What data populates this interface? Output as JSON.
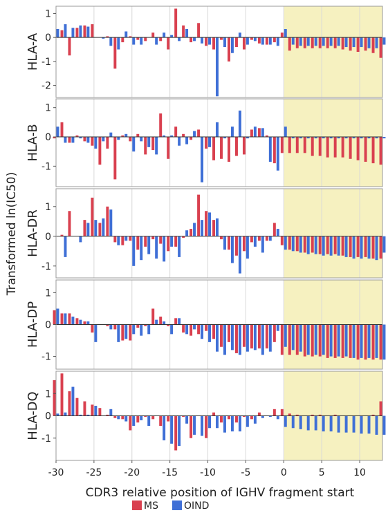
{
  "chart_data": {
    "type": "bar",
    "xlabel": "CDR3 relative position of IGHV fragment start",
    "ylabel": "Transformed ln(IC50)",
    "xlim": [
      -30,
      13
    ],
    "x_ticks": [
      -30,
      -25,
      -20,
      -15,
      -10,
      -5,
      0,
      5,
      10
    ],
    "highlight_range": [
      0,
      13
    ],
    "highlight_color": "#f6f1c0",
    "x": [
      -30,
      -29,
      -28,
      -27,
      -26,
      -25,
      -24,
      -23,
      -22,
      -21,
      -20,
      -19,
      -18,
      -17,
      -16,
      -15,
      -14,
      -13,
      -12,
      -11,
      -10,
      -9,
      -8,
      -7,
      -6,
      -5,
      -4,
      -3,
      -2,
      -1,
      0,
      1,
      2,
      3,
      4,
      5,
      6,
      7,
      8,
      9,
      10,
      11,
      12,
      13
    ],
    "legend": [
      {
        "name": "MS",
        "color": "#d9404f"
      },
      {
        "name": "OIND",
        "color": "#3f6fd6"
      }
    ],
    "panels": [
      {
        "label": "HLA-A",
        "ylim": [
          -2.5,
          1.3
        ],
        "y_ticks": [
          1,
          0,
          -1,
          -2
        ],
        "series": [
          {
            "name": "MS",
            "values": [
              0.0,
              0.3,
              -0.75,
              0.4,
              0.5,
              0.55,
              0.0,
              0.05,
              -1.3,
              -0.2,
              0.05,
              -0.1,
              -0.15,
              0.2,
              -0.15,
              -0.5,
              1.2,
              0.5,
              -0.2,
              0.6,
              -0.35,
              -0.5,
              -0.1,
              -1.0,
              -0.4,
              -0.5,
              -0.1,
              -0.25,
              -0.3,
              -0.2,
              0.2,
              -0.55,
              -0.45,
              -0.45,
              -0.45,
              -0.45,
              -0.45,
              -0.45,
              -0.5,
              -0.55,
              -0.6,
              -0.55,
              -0.65,
              -0.85
            ]
          },
          {
            "name": "OIND",
            "values": [
              0.35,
              0.55,
              0.4,
              0.5,
              0.45,
              0.0,
              -0.05,
              -0.35,
              -0.5,
              0.25,
              -0.3,
              -0.3,
              0.0,
              -0.3,
              0.2,
              0.1,
              -0.15,
              0.35,
              -0.15,
              -0.25,
              -0.3,
              -2.45,
              -0.4,
              -0.65,
              0.2,
              -0.3,
              -0.15,
              -0.3,
              -0.3,
              -0.35,
              0.35,
              -0.3,
              -0.35,
              -0.35,
              -0.35,
              -0.35,
              -0.35,
              -0.35,
              -0.4,
              -0.4,
              -0.4,
              -0.45,
              -0.45,
              -0.3
            ]
          }
        ]
      },
      {
        "label": "HLA-B",
        "ylim": [
          -1.7,
          1.3
        ],
        "y_ticks": [
          1,
          0,
          -1
        ],
        "series": [
          {
            "name": "MS",
            "values": [
              -0.05,
              0.5,
              -0.2,
              0.05,
              -0.15,
              -0.3,
              -0.95,
              -0.4,
              -1.45,
              0.05,
              -0.15,
              0.1,
              -0.6,
              -0.45,
              0.8,
              -0.75,
              0.35,
              0.1,
              -0.1,
              0.25,
              -0.4,
              -0.8,
              -0.75,
              -0.85,
              -0.65,
              -0.6,
              0.25,
              0.3,
              0.05,
              -0.9,
              -0.55,
              -0.55,
              -0.55,
              -0.55,
              -0.65,
              -0.65,
              -0.7,
              -0.7,
              -0.7,
              -0.75,
              -0.8,
              -0.85,
              -0.9,
              -0.95
            ]
          },
          {
            "name": "OIND",
            "values": [
              0.35,
              -0.2,
              -0.2,
              -0.05,
              -0.2,
              -0.4,
              -0.15,
              0.15,
              -0.1,
              0.1,
              -0.5,
              -0.15,
              -0.35,
              -0.6,
              0.05,
              0.05,
              -0.3,
              -0.25,
              0.2,
              -1.55,
              -0.35,
              0.5,
              -0.05,
              0.35,
              0.9,
              -0.05,
              0.35,
              0.3,
              -0.85,
              -1.15,
              0.35,
              -0.05,
              -0.05,
              -0.05,
              -0.05,
              -0.05,
              -0.05,
              -0.05,
              -0.05,
              -0.05,
              -0.05,
              -0.05,
              -0.05,
              -0.05
            ]
          }
        ]
      },
      {
        "label": "HLA-DR",
        "ylim": [
          -1.4,
          1.6
        ],
        "y_ticks": [
          1,
          0,
          -1
        ],
        "series": [
          {
            "name": "MS",
            "values": [
              0.0,
              0.05,
              0.85,
              0.0,
              0.55,
              1.3,
              0.45,
              1.0,
              -0.2,
              -0.3,
              -0.15,
              -0.45,
              -0.35,
              -0.1,
              -0.25,
              -0.5,
              -0.35,
              -0.05,
              0.25,
              1.4,
              0.85,
              0.55,
              -0.1,
              -0.45,
              -0.65,
              -0.5,
              -0.2,
              -0.15,
              -0.15,
              0.45,
              -0.3,
              -0.45,
              -0.5,
              -0.55,
              -0.55,
              -0.6,
              -0.6,
              -0.6,
              -0.65,
              -0.7,
              -0.7,
              -0.7,
              -0.75,
              -0.75
            ]
          },
          {
            "name": "OIND",
            "values": [
              0.0,
              -0.7,
              0.0,
              -0.2,
              0.45,
              0.55,
              0.6,
              0.9,
              -0.3,
              -0.15,
              -1.0,
              -0.8,
              -0.6,
              -0.75,
              -0.85,
              -0.35,
              -0.7,
              0.2,
              0.45,
              0.55,
              0.8,
              0.6,
              -0.45,
              -0.9,
              -1.25,
              -0.75,
              -0.35,
              -0.55,
              -0.15,
              0.25,
              -0.45,
              -0.5,
              -0.55,
              -0.6,
              -0.6,
              -0.65,
              -0.65,
              -0.65,
              -0.7,
              -0.75,
              -0.75,
              -0.75,
              -0.8,
              -0.55
            ]
          }
        ]
      },
      {
        "label": "HLA-DP",
        "ylim": [
          -1.4,
          1.4
        ],
        "y_ticks": [
          1,
          0,
          -1
        ],
        "series": [
          {
            "name": "MS",
            "values": [
              0.45,
              0.35,
              0.35,
              0.2,
              0.1,
              -0.25,
              0.0,
              -0.05,
              -0.15,
              -0.5,
              -0.5,
              -0.1,
              -0.05,
              0.5,
              0.25,
              -0.05,
              0.2,
              -0.25,
              -0.35,
              -0.3,
              -0.2,
              -0.45,
              -0.7,
              -0.55,
              -0.9,
              -0.7,
              -0.75,
              -0.75,
              -0.75,
              -0.55,
              -0.95,
              -0.95,
              -0.95,
              -1.0,
              -1.0,
              -1.0,
              -1.05,
              -1.05,
              -1.05,
              -1.05,
              -1.1,
              -1.1,
              -1.1,
              -1.1
            ]
          },
          {
            "name": "OIND",
            "values": [
              0.5,
              0.35,
              0.25,
              0.15,
              0.1,
              -0.55,
              0.0,
              -0.15,
              -0.55,
              -0.45,
              -0.3,
              -0.35,
              -0.3,
              0.15,
              0.1,
              -0.3,
              0.2,
              -0.3,
              -0.15,
              -0.45,
              -0.55,
              -0.85,
              -0.95,
              -0.8,
              -0.95,
              -0.85,
              -0.8,
              -0.95,
              -0.85,
              -0.2,
              -0.7,
              -0.8,
              -0.85,
              -0.95,
              -0.95,
              -0.95,
              -1.0,
              -1.0,
              -1.0,
              -1.05,
              -1.05,
              -1.05,
              -1.05,
              -1.1
            ]
          }
        ]
      },
      {
        "label": "HLA-DQ",
        "ylim": [
          -2.0,
          2.0
        ],
        "y_ticks": [
          1,
          0,
          -1
        ],
        "series": [
          {
            "name": "MS",
            "values": [
              1.6,
              1.9,
              1.1,
              0.8,
              0.65,
              0.5,
              0.35,
              0.05,
              -0.1,
              -0.15,
              -0.65,
              -0.3,
              -0.05,
              -0.15,
              -0.45,
              -0.25,
              -1.55,
              -0.05,
              -1.0,
              0.0,
              -1.0,
              0.15,
              -0.3,
              -0.15,
              -0.3,
              -0.05,
              -0.15,
              0.15,
              0.0,
              0.3,
              0.3,
              0.1,
              0.05,
              0.0,
              0.05,
              0.05,
              0.0,
              0.05,
              0.0,
              0.0,
              0.0,
              0.0,
              0.05,
              0.65
            ]
          },
          {
            "name": "OIND",
            "values": [
              0.1,
              0.15,
              1.3,
              0.05,
              0.05,
              0.45,
              0.0,
              0.3,
              -0.15,
              -0.25,
              -0.45,
              -0.2,
              -0.45,
              0.0,
              -1.1,
              -1.25,
              -1.35,
              -0.35,
              -0.85,
              -0.9,
              -0.55,
              -0.55,
              -0.75,
              -0.7,
              -0.7,
              -0.5,
              -0.35,
              -0.1,
              -0.05,
              -0.15,
              -0.5,
              -0.55,
              -0.6,
              -0.65,
              -0.65,
              -0.7,
              -0.7,
              -0.75,
              -0.75,
              -0.75,
              -0.8,
              -0.8,
              -0.85,
              -0.85
            ]
          }
        ]
      }
    ]
  }
}
